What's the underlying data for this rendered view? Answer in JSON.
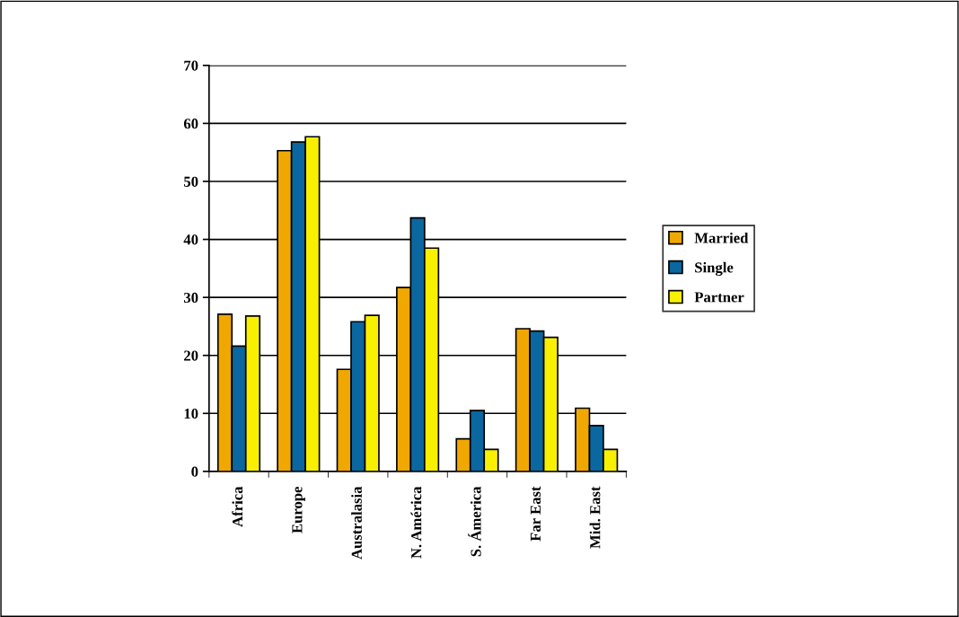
{
  "chart_data": {
    "type": "bar",
    "categories": [
      "Africa",
      "Europe",
      "Australasia",
      "N. América",
      "S. Ámerica",
      "Far East",
      "Mid. East"
    ],
    "series": [
      {
        "name": "Married",
        "color": "#f0a800",
        "values": [
          27.1,
          55.3,
          17.6,
          31.7,
          5.6,
          24.6,
          10.9
        ]
      },
      {
        "name": "Single",
        "color": "#0a679f",
        "values": [
          21.6,
          56.8,
          25.8,
          43.7,
          10.5,
          24.2,
          7.9
        ]
      },
      {
        "name": "Partner",
        "color": "#f8f000",
        "values": [
          26.8,
          57.7,
          26.9,
          38.5,
          3.8,
          23.1,
          3.8
        ]
      }
    ],
    "ylim": [
      0,
      70
    ],
    "yticks": [
      0,
      10,
      20,
      30,
      40,
      50,
      60,
      70
    ],
    "grid": "y",
    "legend": "right"
  }
}
